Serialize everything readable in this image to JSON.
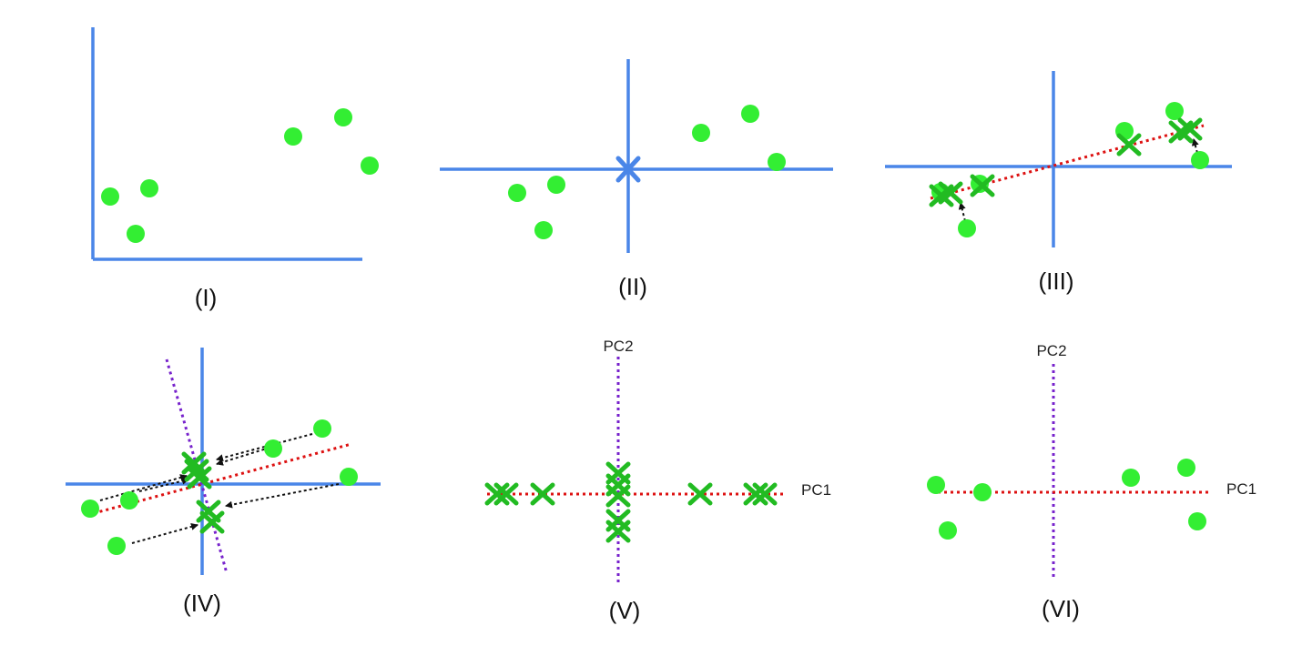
{
  "panels": [
    {
      "caption": "(I)"
    },
    {
      "caption": "(II)"
    },
    {
      "caption": "(III)"
    },
    {
      "caption": "(IV)"
    },
    {
      "caption": "(V)",
      "pc1_label": "PC1",
      "pc2_label": "PC2"
    },
    {
      "caption": "(VI)",
      "pc1_label": "PC1",
      "pc2_label": "PC2"
    }
  ],
  "colors": {
    "axis": "#4a86e8",
    "point": "#33ee33",
    "marker": "#22bb22",
    "pc1": "#dd1111",
    "pc2": "#7722cc",
    "arrow": "#111111"
  }
}
